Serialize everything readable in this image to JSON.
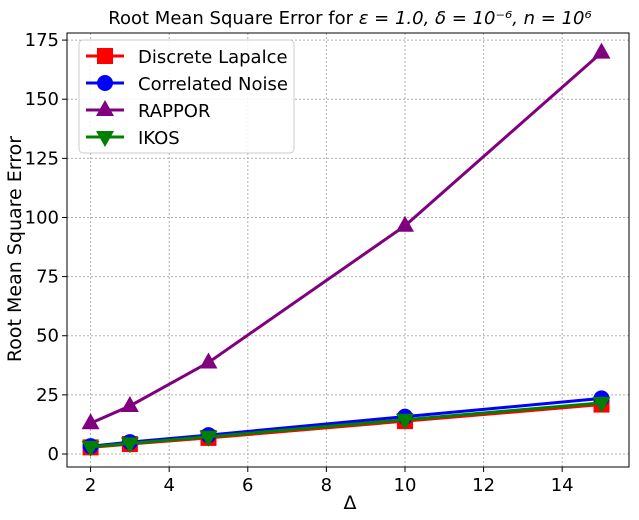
{
  "chart_data": {
    "type": "line",
    "title_main": "Root Mean Square Error for ",
    "title_math": "ε = 1.0, δ = 10⁻⁶, n = 10⁶",
    "xlabel": "Δ",
    "ylabel": "Root Mean Square Error",
    "x": [
      2,
      3,
      5,
      10,
      15
    ],
    "xlim": [
      1.4,
      15.7
    ],
    "ylim": [
      -5.5,
      178
    ],
    "xticks": [
      "2",
      "4",
      "6",
      "8",
      "10",
      "12",
      "14"
    ],
    "yticks": [
      "0",
      "25",
      "50",
      "75",
      "100",
      "125",
      "150",
      "175"
    ],
    "grid": true,
    "legend_position": "top-left",
    "series": [
      {
        "name": "Discrete Lapalce",
        "color": "#ff0000",
        "marker": "square",
        "values": [
          2.8,
          4.2,
          6.8,
          13.9,
          20.9
        ]
      },
      {
        "name": "Correlated Noise",
        "color": "#0000ff",
        "marker": "circle",
        "values": [
          3.3,
          5.0,
          8.0,
          15.8,
          23.5
        ]
      },
      {
        "name": "RAPPOR",
        "color": "#800080",
        "marker": "triangle-up",
        "values": [
          13.0,
          20.3,
          38.7,
          96.5,
          169.7
        ]
      },
      {
        "name": "IKOS",
        "color": "#008000",
        "marker": "triangle-down",
        "values": [
          3.0,
          4.5,
          7.3,
          14.5,
          21.6
        ]
      }
    ]
  }
}
